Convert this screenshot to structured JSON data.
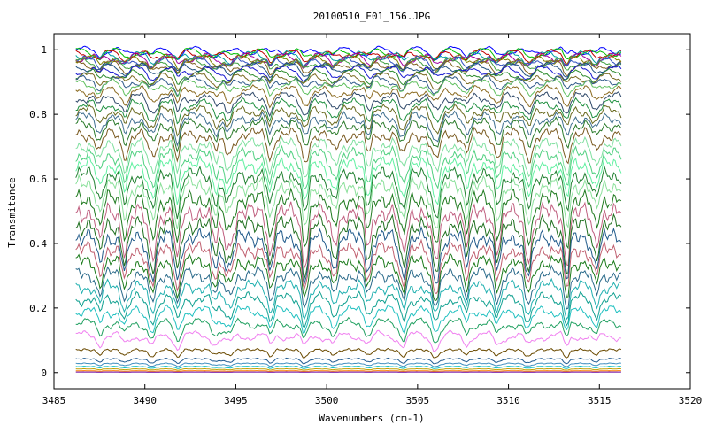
{
  "chart_data": {
    "type": "line",
    "title": "20100510_E01_156.JPG",
    "xlabel": "Wavenumbers (cm-1)",
    "ylabel": "Transmitance",
    "xlim": [
      3485,
      3520
    ],
    "ylim": [
      -0.05,
      1.05
    ],
    "x_ticks": [
      3485,
      3490,
      3495,
      3500,
      3505,
      3510,
      3515,
      3520
    ],
    "x_tick_labels": [
      "3485",
      "3490",
      "3495",
      "3500",
      "3505",
      "3510",
      "3515",
      "3520"
    ],
    "y_ticks": [
      0,
      0.2,
      0.4,
      0.6,
      0.8,
      1
    ],
    "y_tick_labels": [
      "0",
      "0.2",
      "0.4",
      "0.6",
      "0.8",
      "1"
    ],
    "x_range": [
      3486.2,
      3516.2
    ],
    "grid": false,
    "legend": "none",
    "absorption_lines": [
      3487.5,
      3488.9,
      3490.4,
      3491.8,
      3493.9,
      3494.6,
      3496.9,
      3498.8,
      3500.4,
      3502.3,
      3504.2,
      3506.0,
      3507.7,
      3509.4,
      3511.1,
      3513.2,
      3514.8
    ],
    "series_baselines": [
      1.0,
      0.995,
      0.99,
      0.985,
      0.98,
      0.975,
      0.97,
      0.965,
      0.96,
      0.95,
      0.94,
      0.93,
      0.92,
      0.91,
      0.9,
      0.88,
      0.86,
      0.84,
      0.82,
      0.8,
      0.78,
      0.75,
      0.72,
      0.69,
      0.66,
      0.63,
      0.6,
      0.56,
      0.52,
      0.48,
      0.44,
      0.4,
      0.36,
      0.32,
      0.28,
      0.24,
      0.2,
      0.16,
      0.12,
      0.075,
      0.045,
      0.03,
      0.02,
      0.012,
      0.006,
      0.002
    ],
    "series_colors": [
      "#0000ff",
      "#00c000",
      "#c00000",
      "#00a0a0",
      "#a000a0",
      "#808000",
      "#3050c0",
      "#40a040",
      "#806020",
      "#205080",
      "#1818d0",
      "#2a8a2a",
      "#7a6a20",
      "#305a8a",
      "#60c060",
      "#8a6a20",
      "#304a6a",
      "#209040",
      "#6a6a20",
      "#407090",
      "#2a7a2a",
      "#7a5a20",
      "#80e0a0",
      "#50d080",
      "#60f0a0",
      "#208030",
      "#8ae09a",
      "#1f7a1f",
      "#c06080",
      "#207020",
      "#205a8a",
      "#c06070",
      "#1a7a1a",
      "#2a6a8a",
      "#20b0b0",
      "#10a090",
      "#20c0c0",
      "#20a060",
      "#f080f0",
      "#6a4a00",
      "#205a90",
      "#4090c0",
      "#10c0c0",
      "#c0a000",
      "#ff8000",
      "#6a00a0"
    ]
  }
}
